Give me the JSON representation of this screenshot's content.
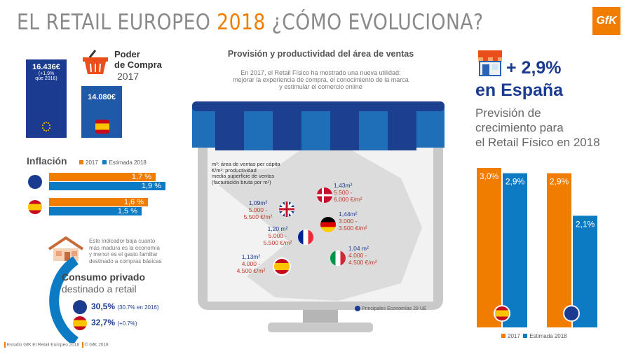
{
  "title": {
    "part1": "EL RETAIL EUROPEO ",
    "year": "2018",
    "part2": " ¿CÓMO EVOLUCIONA?"
  },
  "logo": "GfK",
  "purchasing_power": {
    "heading_line1": "Poder",
    "heading_line2": "de Compra",
    "year": "2017",
    "eu_value": "16.436€",
    "eu_note_line1": "(+1,9%",
    "eu_note_line2": "que 2016)",
    "es_value": "14.080€"
  },
  "inflation": {
    "title": "Inflación",
    "legend_2017": "2017",
    "legend_2018": "Estimada 2018",
    "eu_2017": "1,7 %",
    "eu_2018": "1,9 %",
    "es_2017": "1,6 %",
    "es_2018": "1,5 %"
  },
  "consumption": {
    "note_line1": "Este indicador baja cuanto",
    "note_line2": "más madura es la economía",
    "note_line3": "y menor es el gasto familiar",
    "note_line4": "destinado a compras básicas",
    "title_line1": "Consumo privado",
    "title_line2": "destinado a retail",
    "eu_value": "30,5%",
    "eu_note": "(30.7% en 2016)",
    "es_value": "32,7%",
    "es_note": "(+0.7%)"
  },
  "center": {
    "heading": "Provisión y productividad del área de ventas",
    "intro_line1": "En 2017, el Retail Físico ha mostrado una nueva utilidad:",
    "intro_line2": "mejorar la experiencia de compra, el conocimiento de la marca",
    "intro_line3": "y estimular el comercio online",
    "legend_m2": "m²: área de ventas per cápita",
    "legend_eur_line1": "€/m²: productividad",
    "legend_eur_line2": "media superficie de ventas",
    "legend_eur_line3": "(facturación bruta por m²)",
    "footer_note": "Principales Economías 28 UE",
    "countries": [
      {
        "name": "uk",
        "m2": "1,09m²",
        "r1": "5.000 -",
        "r2": "5.500 €/m²"
      },
      {
        "name": "dk",
        "m2": "1,43m²",
        "r1": "5.500 -",
        "r2": "6.000 €/m²"
      },
      {
        "name": "fr",
        "m2": "1,20 m²",
        "r1": "5.000 -",
        "r2": "5.500 €/m²"
      },
      {
        "name": "de",
        "m2": "1,44m²",
        "r1": "3.000 -",
        "r2": "3.500 €/m²"
      },
      {
        "name": "es",
        "m2": "1,13m²",
        "r1": "4.000 -",
        "r2": "4.500 €/m²"
      },
      {
        "name": "it",
        "m2": "1,04 m²",
        "r1": "4.000 -",
        "r2": "4.500 €/m²"
      }
    ]
  },
  "growth": {
    "value": "+ 2,9%",
    "country": "en España",
    "desc_line1": "Previsión de",
    "desc_line2": "crecimiento para",
    "desc_line3": "el Retail Físico en 2018",
    "legend_2017": "2017",
    "legend_2018": "Estimada 2018"
  },
  "chart_data": {
    "type": "bar",
    "categories": [
      "España",
      "UE"
    ],
    "series": [
      {
        "name": "2017",
        "values": [
          3.0,
          2.9
        ],
        "labels": [
          "3,0%",
          "2,9%"
        ],
        "color": "#f07d00"
      },
      {
        "name": "Estimada 2018",
        "values": [
          2.9,
          2.1
        ],
        "labels": [
          "2,9%",
          "2,1%"
        ],
        "color": "#0d7bc4"
      }
    ]
  },
  "footer": {
    "source": "Estudio GfK El Retail Europeo 2018",
    "copyright": "© GfK 2018"
  },
  "colors": {
    "orange": "#f07d00",
    "blue": "#0d7bc4",
    "navy": "#1a3b8f",
    "grey": "#c8c8c8"
  }
}
